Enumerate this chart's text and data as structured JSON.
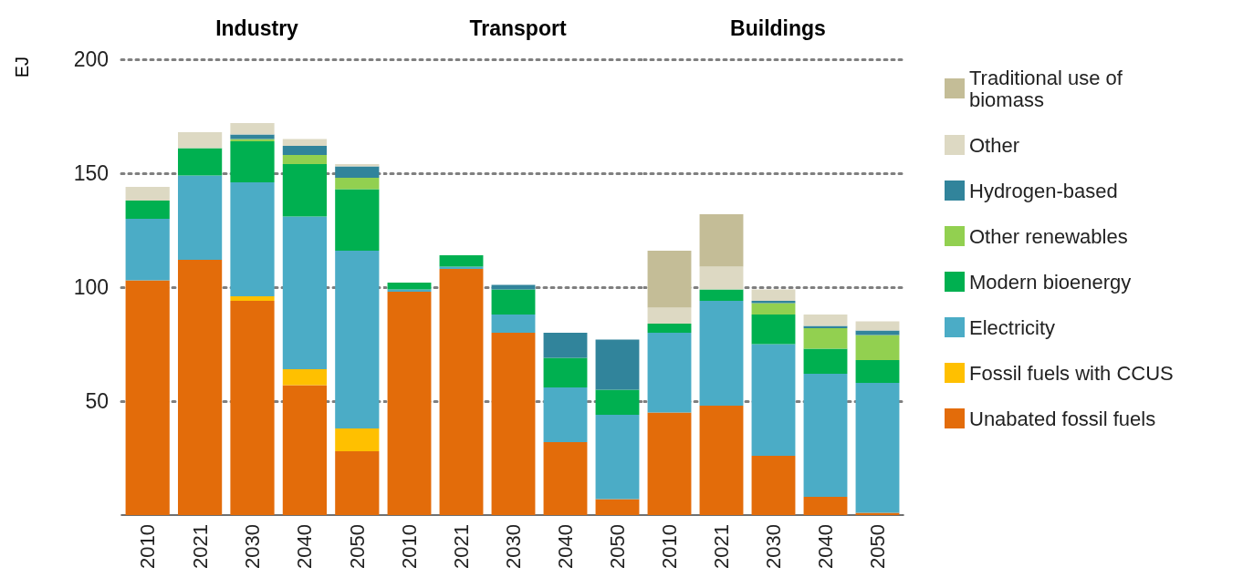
{
  "chart_data": [
    {
      "type": "bar",
      "title": "Industry",
      "ylabel": "EJ",
      "stacked": true,
      "categories": [
        "2010",
        "2021",
        "2030",
        "2040",
        "2050"
      ],
      "ylim": [
        0,
        200
      ],
      "yticks": [
        50,
        100,
        150,
        200
      ],
      "grid": "y",
      "legend": false,
      "series": [
        {
          "color": "#e36c0a",
          "values": [
            103,
            112,
            94,
            57,
            28
          ]
        },
        {
          "color": "#ffc000",
          "values": [
            0,
            0,
            2,
            7,
            10
          ]
        },
        {
          "color": "#4bacc6",
          "values": [
            27,
            37,
            50,
            67,
            78
          ]
        },
        {
          "color": "#00b050",
          "values": [
            8,
            12,
            18,
            23,
            27
          ]
        },
        {
          "color": "#92d050",
          "values": [
            0,
            0,
            1,
            4,
            5
          ]
        },
        {
          "color": "#31849b",
          "values": [
            0,
            0,
            2,
            4,
            5
          ]
        },
        {
          "color": "#ddd9c3",
          "values": [
            6,
            7,
            5,
            3,
            1
          ]
        },
        {
          "color": "#c4bd97",
          "values": [
            0,
            0,
            0,
            0,
            0
          ]
        }
      ]
    },
    {
      "type": "bar",
      "title": "Transport",
      "stacked": true,
      "categories": [
        "2010",
        "2021",
        "2030",
        "2040",
        "2050"
      ],
      "ylim": [
        0,
        200
      ],
      "yticks": [
        50,
        100,
        150,
        200
      ],
      "grid": "y",
      "legend": false,
      "tick_labels": "x",
      "series": [
        {
          "color": "#e36c0a",
          "values": [
            98,
            108,
            80,
            32,
            7
          ]
        },
        {
          "color": "#ffc000",
          "values": [
            0,
            0,
            0,
            0,
            0
          ]
        },
        {
          "color": "#4bacc6",
          "values": [
            1,
            1,
            8,
            24,
            37
          ]
        },
        {
          "color": "#00b050",
          "values": [
            3,
            5,
            11,
            13,
            11
          ]
        },
        {
          "color": "#92d050",
          "values": [
            0,
            0,
            0,
            0,
            0
          ]
        },
        {
          "color": "#31849b",
          "values": [
            0,
            0,
            2,
            11,
            22
          ]
        },
        {
          "color": "#ddd9c3",
          "values": [
            0,
            0,
            0,
            0,
            0
          ]
        },
        {
          "color": "#c4bd97",
          "values": [
            0,
            0,
            0,
            0,
            0
          ]
        }
      ]
    },
    {
      "type": "bar",
      "title": "Buildings",
      "stacked": true,
      "categories": [
        "2010",
        "2021",
        "2030",
        "2040",
        "2050"
      ],
      "ylim": [
        0,
        200
      ],
      "yticks": [
        50,
        100,
        150,
        200
      ],
      "grid": "y",
      "legend": "right",
      "tick_labels": "x",
      "series": [
        {
          "name": "Unabated fossil fuels",
          "color": "#e36c0a",
          "values": [
            45,
            48,
            26,
            8,
            1
          ]
        },
        {
          "name": "Fossil fuels with CCUS",
          "color": "#ffc000",
          "values": [
            0,
            0,
            0,
            0,
            0
          ]
        },
        {
          "name": "Electricity",
          "color": "#4bacc6",
          "values": [
            35,
            46,
            49,
            54,
            57
          ]
        },
        {
          "name": "Modern bioenergy",
          "color": "#00b050",
          "values": [
            4,
            5,
            13,
            11,
            10
          ]
        },
        {
          "name": "Other renewables",
          "color": "#92d050",
          "values": [
            0,
            0,
            5,
            9,
            11
          ]
        },
        {
          "name": "Hydrogen-based",
          "color": "#31849b",
          "values": [
            0,
            0,
            1,
            1,
            2
          ]
        },
        {
          "name": "Other",
          "color": "#ddd9c3",
          "values": [
            7,
            10,
            5,
            5,
            4
          ]
        },
        {
          "name": "Traditional use of biomass",
          "color": "#c4bd97",
          "values": [
            25,
            23,
            0,
            0,
            0
          ]
        }
      ]
    }
  ]
}
